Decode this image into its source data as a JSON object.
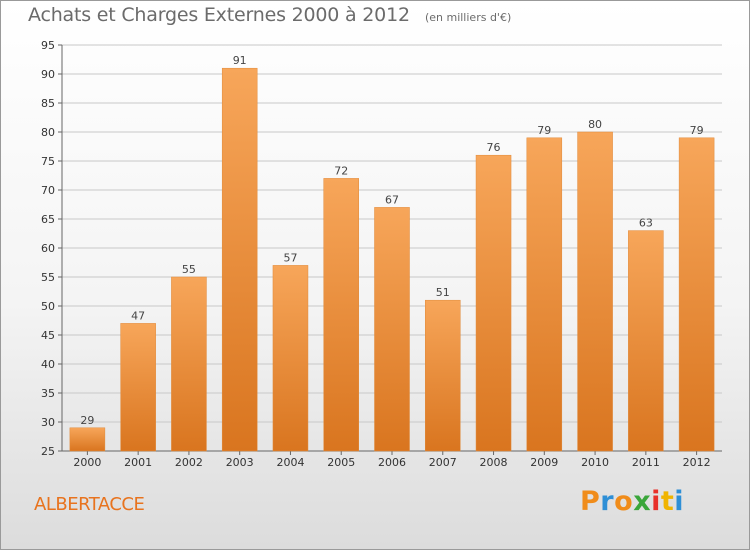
{
  "header": {
    "title": "Achats et Charges Externes 2000 à 2012",
    "unit": "(en milliers d'€)"
  },
  "footer": {
    "commune": "ALBERTACCE",
    "logo_text": "Proxiti",
    "logo_colors": [
      "#f08c1a",
      "#2e8fd6",
      "#f08c1a",
      "#3aa63a",
      "#e8302a",
      "#f0b400",
      "#2e8fd6"
    ]
  },
  "chart_data": {
    "type": "bar",
    "title": "Achats et Charges Externes 2000 à 2012",
    "subtitle": "(en milliers d'€)",
    "xlabel": "",
    "ylabel": "",
    "categories": [
      "2000",
      "2001",
      "2002",
      "2003",
      "2004",
      "2005",
      "2006",
      "2007",
      "2008",
      "2009",
      "2010",
      "2011",
      "2012"
    ],
    "values": [
      29,
      47,
      55,
      91,
      57,
      72,
      67,
      51,
      76,
      79,
      80,
      63,
      79
    ],
    "ylim": [
      25,
      95
    ],
    "yticks": [
      25,
      30,
      35,
      40,
      45,
      50,
      55,
      60,
      65,
      70,
      75,
      80,
      85,
      90,
      95
    ],
    "grid": "horizontal",
    "bar_color_top": "#f7a65a",
    "bar_color_bottom": "#d9751f",
    "legend": "none"
  }
}
